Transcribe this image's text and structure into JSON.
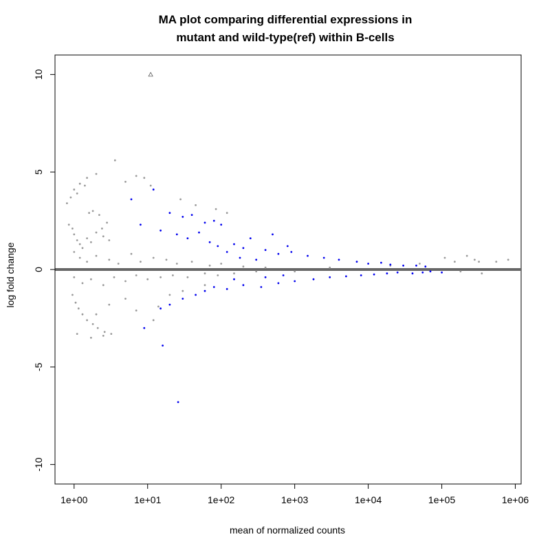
{
  "chart_data": {
    "type": "scatter",
    "title_lines": [
      "MA plot comparing differential expressions in",
      "mutant and wild-type(ref) within B-cells"
    ],
    "xlabel": "mean of normalized counts",
    "ylabel": "log fold change",
    "x_scale": "log10",
    "xlim": [
      0.55,
      1200000
    ],
    "ylim": [
      -11,
      11
    ],
    "x_ticks": [
      1,
      10,
      100,
      1000,
      10000,
      100000,
      1000000
    ],
    "x_tick_labels": [
      "1e+00",
      "1e+01",
      "1e+02",
      "1e+03",
      "1e+04",
      "1e+05",
      "1e+06"
    ],
    "y_ticks": [
      -10,
      -5,
      0,
      5,
      10
    ],
    "y_tick_labels": [
      "-10",
      "-5",
      "0",
      "5",
      "10"
    ],
    "reference_line": {
      "y": 0,
      "color": "#666666"
    },
    "grid": false,
    "legend": "none",
    "series": [
      {
        "color": "#999999",
        "points": [
          [
            0.8,
            3.4
          ],
          [
            0.9,
            3.7
          ],
          [
            1.0,
            4.1
          ],
          [
            1.2,
            4.4
          ],
          [
            1.5,
            4.7
          ],
          [
            2.0,
            4.9
          ],
          [
            1.1,
            3.9
          ],
          [
            1.4,
            4.3
          ],
          [
            0.85,
            2.3
          ],
          [
            0.95,
            2.1
          ],
          [
            1.0,
            1.8
          ],
          [
            1.1,
            1.5
          ],
          [
            1.2,
            1.3
          ],
          [
            1.3,
            1.1
          ],
          [
            1.5,
            1.6
          ],
          [
            1.7,
            1.4
          ],
          [
            2.0,
            1.9
          ],
          [
            2.5,
            1.7
          ],
          [
            3.0,
            1.5
          ],
          [
            1.6,
            2.9
          ],
          [
            1.8,
            3.0
          ],
          [
            2.2,
            2.8
          ],
          [
            2.8,
            2.4
          ],
          [
            2.4,
            2.1
          ],
          [
            3.6,
            5.6
          ],
          [
            5.0,
            4.5
          ],
          [
            7.0,
            4.8
          ],
          [
            9.0,
            4.7
          ],
          [
            11.0,
            4.3
          ],
          [
            28.0,
            3.6
          ],
          [
            45.0,
            3.3
          ],
          [
            85.0,
            3.1
          ],
          [
            120.0,
            2.9
          ],
          [
            1.0,
            0.9
          ],
          [
            1.2,
            0.6
          ],
          [
            1.5,
            0.4
          ],
          [
            2.0,
            0.7
          ],
          [
            3.0,
            0.5
          ],
          [
            4.0,
            0.3
          ],
          [
            6.0,
            0.8
          ],
          [
            8.0,
            0.4
          ],
          [
            12.0,
            0.6
          ],
          [
            18.0,
            0.5
          ],
          [
            25.0,
            0.3
          ],
          [
            40.0,
            0.4
          ],
          [
            70.0,
            0.2
          ],
          [
            100.0,
            0.3
          ],
          [
            200.0,
            0.15
          ],
          [
            400.0,
            0.1
          ],
          [
            1.0,
            -0.4
          ],
          [
            1.3,
            -0.7
          ],
          [
            1.7,
            -0.5
          ],
          [
            2.5,
            -0.8
          ],
          [
            3.5,
            -0.4
          ],
          [
            5.0,
            -0.6
          ],
          [
            7.0,
            -0.3
          ],
          [
            10.0,
            -0.5
          ],
          [
            15.0,
            -0.4
          ],
          [
            22.0,
            -0.3
          ],
          [
            35.0,
            -0.4
          ],
          [
            60.0,
            -0.2
          ],
          [
            90.0,
            -0.3
          ],
          [
            150.0,
            -0.2
          ],
          [
            300.0,
            -0.1
          ],
          [
            0.95,
            -1.3
          ],
          [
            1.05,
            -1.7
          ],
          [
            1.15,
            -2.0
          ],
          [
            1.3,
            -2.3
          ],
          [
            1.5,
            -2.6
          ],
          [
            1.8,
            -2.8
          ],
          [
            2.1,
            -3.0
          ],
          [
            2.6,
            -3.2
          ],
          [
            1.1,
            -3.3
          ],
          [
            1.7,
            -3.5
          ],
          [
            2.5,
            -3.4
          ],
          [
            3.2,
            -3.3
          ],
          [
            2.0,
            -2.3
          ],
          [
            3.0,
            -1.8
          ],
          [
            5.0,
            -1.5
          ],
          [
            7.0,
            -2.1
          ],
          [
            12.0,
            -2.6
          ],
          [
            14.0,
            -1.9
          ],
          [
            20.0,
            -1.3
          ],
          [
            30.0,
            -1.1
          ],
          [
            60.0,
            -0.8
          ],
          [
            1000.0,
            -0.1
          ],
          [
            3000.0,
            0.1
          ],
          [
            20000.0,
            0.2
          ],
          [
            50000.0,
            0.3
          ],
          [
            110000.0,
            0.6
          ],
          [
            150000.0,
            0.4
          ],
          [
            220000.0,
            0.7
          ],
          [
            280000.0,
            0.5
          ],
          [
            320000.0,
            0.4
          ],
          [
            550000.0,
            0.4
          ],
          [
            800000.0,
            0.5
          ],
          [
            350000.0,
            -0.2
          ],
          [
            180000.0,
            -0.1
          ]
        ]
      },
      {
        "color": "#0000ee",
        "points": [
          [
            6.0,
            3.6
          ],
          [
            12.0,
            4.1
          ],
          [
            20.0,
            2.9
          ],
          [
            30.0,
            2.7
          ],
          [
            40.0,
            2.8
          ],
          [
            60.0,
            2.4
          ],
          [
            80.0,
            2.5
          ],
          [
            100.0,
            2.3
          ],
          [
            8.0,
            2.3
          ],
          [
            15.0,
            2.0
          ],
          [
            25.0,
            1.8
          ],
          [
            35.0,
            1.6
          ],
          [
            50.0,
            1.9
          ],
          [
            70.0,
            1.4
          ],
          [
            90.0,
            1.2
          ],
          [
            150.0,
            1.3
          ],
          [
            200.0,
            1.1
          ],
          [
            250.0,
            1.6
          ],
          [
            400.0,
            1.0
          ],
          [
            600.0,
            0.8
          ],
          [
            900.0,
            0.9
          ],
          [
            1500.0,
            0.7
          ],
          [
            2500.0,
            0.6
          ],
          [
            4000.0,
            0.5
          ],
          [
            7000.0,
            0.4
          ],
          [
            10000.0,
            0.3
          ],
          [
            15000.0,
            0.35
          ],
          [
            20000.0,
            0.25
          ],
          [
            30000.0,
            0.2
          ],
          [
            45000.0,
            0.2
          ],
          [
            60000.0,
            0.15
          ],
          [
            500.0,
            1.8
          ],
          [
            800.0,
            1.2
          ],
          [
            120.0,
            0.9
          ],
          [
            180.0,
            0.6
          ],
          [
            300.0,
            0.5
          ],
          [
            9.0,
            -3.0
          ],
          [
            15.0,
            -2.0
          ],
          [
            20.0,
            -1.8
          ],
          [
            30.0,
            -1.5
          ],
          [
            45.0,
            -1.3
          ],
          [
            60.0,
            -1.1
          ],
          [
            80.0,
            -0.9
          ],
          [
            120.0,
            -1.0
          ],
          [
            200.0,
            -0.8
          ],
          [
            350.0,
            -0.9
          ],
          [
            600.0,
            -0.7
          ],
          [
            1000.0,
            -0.6
          ],
          [
            1800.0,
            -0.5
          ],
          [
            3000.0,
            -0.4
          ],
          [
            5000.0,
            -0.35
          ],
          [
            8000.0,
            -0.3
          ],
          [
            12000.0,
            -0.25
          ],
          [
            18000.0,
            -0.2
          ],
          [
            25000.0,
            -0.15
          ],
          [
            40000.0,
            -0.2
          ],
          [
            55000.0,
            -0.15
          ],
          [
            70000.0,
            -0.1
          ],
          [
            100000.0,
            -0.15
          ],
          [
            150.0,
            -0.5
          ],
          [
            400.0,
            -0.4
          ],
          [
            700.0,
            -0.3
          ],
          [
            16.0,
            -3.9
          ],
          [
            26.0,
            -6.8
          ]
        ]
      }
    ],
    "outlier_marker": {
      "x": 11.0,
      "y": 10.0,
      "shape": "triangle"
    }
  }
}
